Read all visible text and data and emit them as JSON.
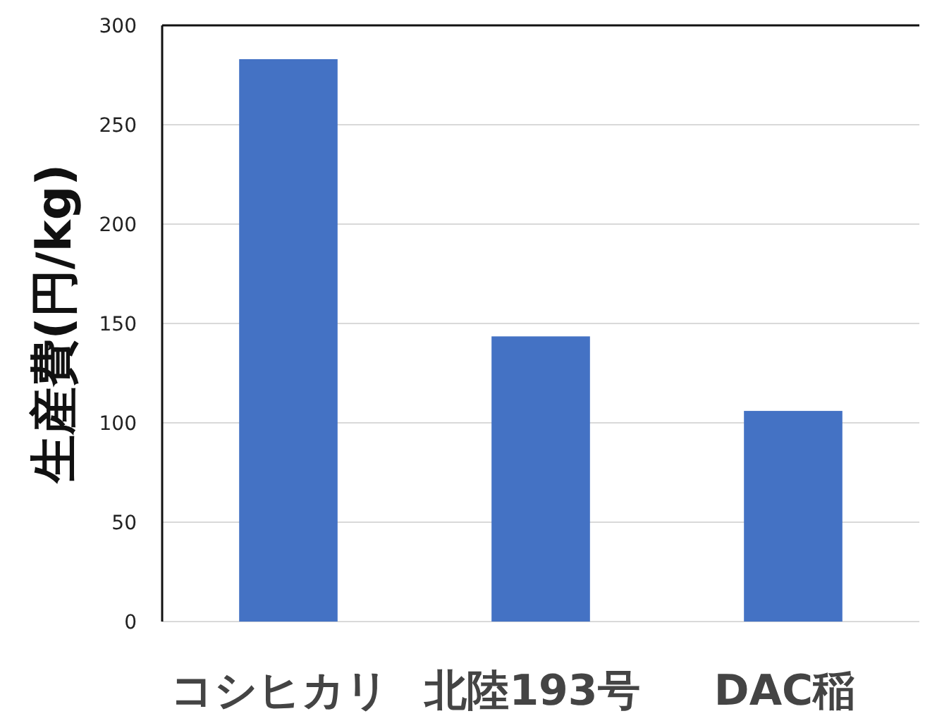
{
  "chart_data": {
    "type": "bar",
    "ylabel": "生産費(円/kg)",
    "categories": [
      "コシヒカリ",
      "北陸193号",
      "DAC稲"
    ],
    "values": [
      283,
      143.5,
      106
    ],
    "color": "#4472c4",
    "ylim": [
      0,
      300
    ],
    "yticks": [
      0,
      50,
      100,
      150,
      200,
      250,
      300
    ],
    "grid": "y"
  }
}
